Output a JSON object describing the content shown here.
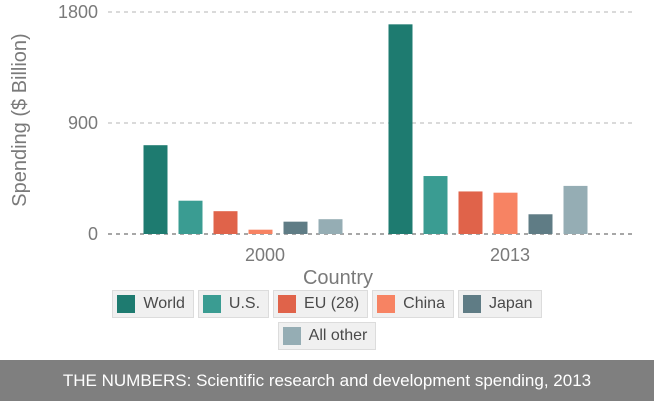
{
  "chart_data": {
    "type": "bar",
    "categories": [
      "2000",
      "2013"
    ],
    "series": [
      {
        "name": "World",
        "values": [
          720,
          1700
        ],
        "color": "#1e7b70"
      },
      {
        "name": "U.S.",
        "values": [
          270,
          470
        ],
        "color": "#3a9c92"
      },
      {
        "name": "EU (28)",
        "values": [
          185,
          345
        ],
        "color": "#e0634a"
      },
      {
        "name": "China",
        "values": [
          35,
          335
        ],
        "color": "#f78363"
      },
      {
        "name": "Japan",
        "values": [
          100,
          160
        ],
        "color": "#5f7c85"
      },
      {
        "name": "All other",
        "values": [
          120,
          390
        ],
        "color": "#95adb4"
      }
    ],
    "ylabel": "Spending ($ Billion)",
    "xlabel": "Country",
    "ylim": [
      0,
      1800
    ],
    "yticks": [
      0,
      900,
      1800
    ],
    "grid": true,
    "legend_position": "bottom"
  },
  "caption": "THE NUMBERS: Scientific research and development spending, 2013"
}
